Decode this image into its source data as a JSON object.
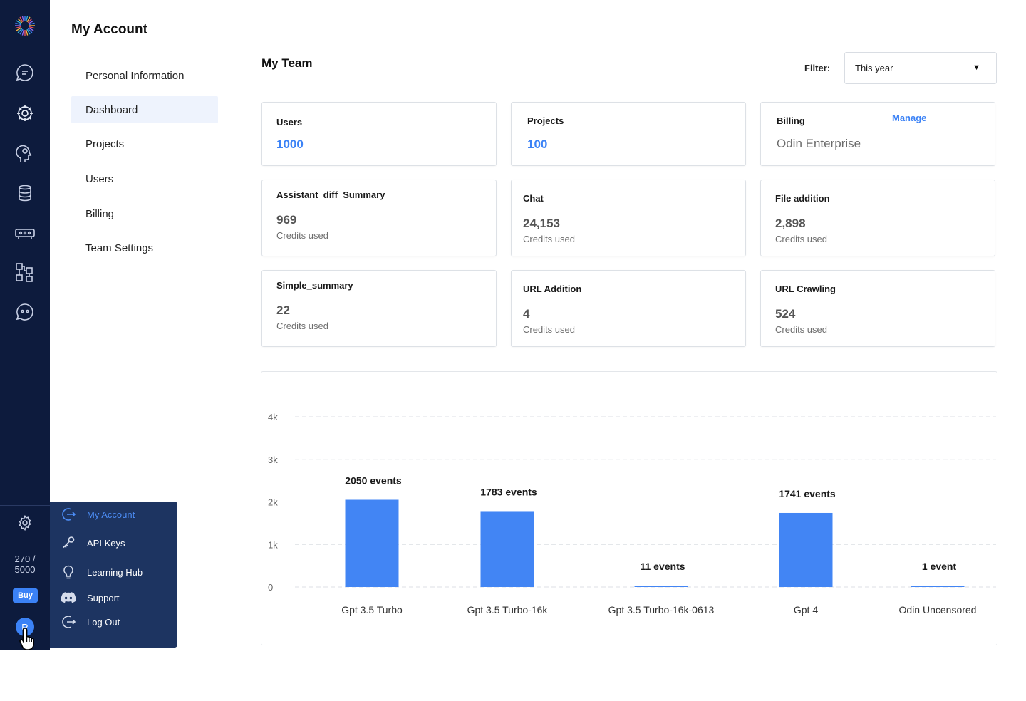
{
  "app": {
    "title": "My Account"
  },
  "rail": {
    "credits_line1": "270 /",
    "credits_line2": "5000",
    "buy_label": "Buy",
    "avatar_initial": "R",
    "icons": [
      "chat-icon",
      "integrations-icon",
      "ai-head-icon",
      "database-icon",
      "server-icon",
      "flow-icon",
      "bot-chat-icon",
      "settings-icon"
    ]
  },
  "user_menu": {
    "items": [
      {
        "label": "My Account",
        "icon": "account-arrow-icon",
        "active": true
      },
      {
        "label": "API Keys",
        "icon": "key-icon"
      },
      {
        "label": "Learning Hub",
        "icon": "lightbulb-icon"
      },
      {
        "label": "Support",
        "icon": "discord-icon"
      },
      {
        "label": "Log Out",
        "icon": "logout-icon"
      }
    ]
  },
  "subnav": {
    "items": [
      {
        "label": "Personal Information"
      },
      {
        "label": "Dashboard",
        "active": true
      },
      {
        "label": "Projects"
      },
      {
        "label": "Users"
      },
      {
        "label": "Billing"
      },
      {
        "label": "Team Settings"
      }
    ]
  },
  "main": {
    "section_title": "My Team",
    "filter_label": "Filter:",
    "filter_value": "This year"
  },
  "summary": {
    "users": {
      "title": "Users",
      "value": "1000"
    },
    "projects": {
      "title": "Projects",
      "value": "100"
    },
    "billing": {
      "title": "Billing",
      "value": "Odin Enterprise",
      "action": "Manage"
    }
  },
  "credits": [
    {
      "title": "Assistant_diff_Summary",
      "value": "969",
      "sub": "Credits used"
    },
    {
      "title": "Chat",
      "value": "24,153",
      "sub": "Credits used"
    },
    {
      "title": "File addition",
      "value": "2,898",
      "sub": "Credits used"
    },
    {
      "title": "Simple_summary",
      "value": "22",
      "sub": "Credits used"
    },
    {
      "title": "URL Addition",
      "value": "4",
      "sub": "Credits used"
    },
    {
      "title": "URL Crawling",
      "value": "524",
      "sub": "Credits used"
    }
  ],
  "colors": {
    "rail": "#0d1b3d",
    "menu": "#1d3461",
    "accent": "#3b82f6",
    "bar": "#4285f4"
  },
  "chart_data": {
    "type": "bar",
    "title": "",
    "xlabel": "",
    "ylabel": "",
    "categories": [
      "Gpt 3.5 Turbo",
      "Gpt 3.5 Turbo-16k",
      "Gpt 3.5 Turbo-16k-0613",
      "Gpt 4",
      "Odin Uncensored"
    ],
    "values": [
      2050,
      1783,
      11,
      1741,
      1
    ],
    "data_labels": [
      "2050 events",
      "1783 events",
      "11 events",
      "1741 events",
      "1 event"
    ],
    "yticks": [
      0,
      1000,
      2000,
      3000,
      4000
    ],
    "ytick_labels": [
      "0",
      "1k",
      "2k",
      "3k",
      "4k"
    ],
    "ylim": [
      0,
      4000
    ],
    "grid": true,
    "grid_style": "dashed",
    "legend": "none"
  }
}
